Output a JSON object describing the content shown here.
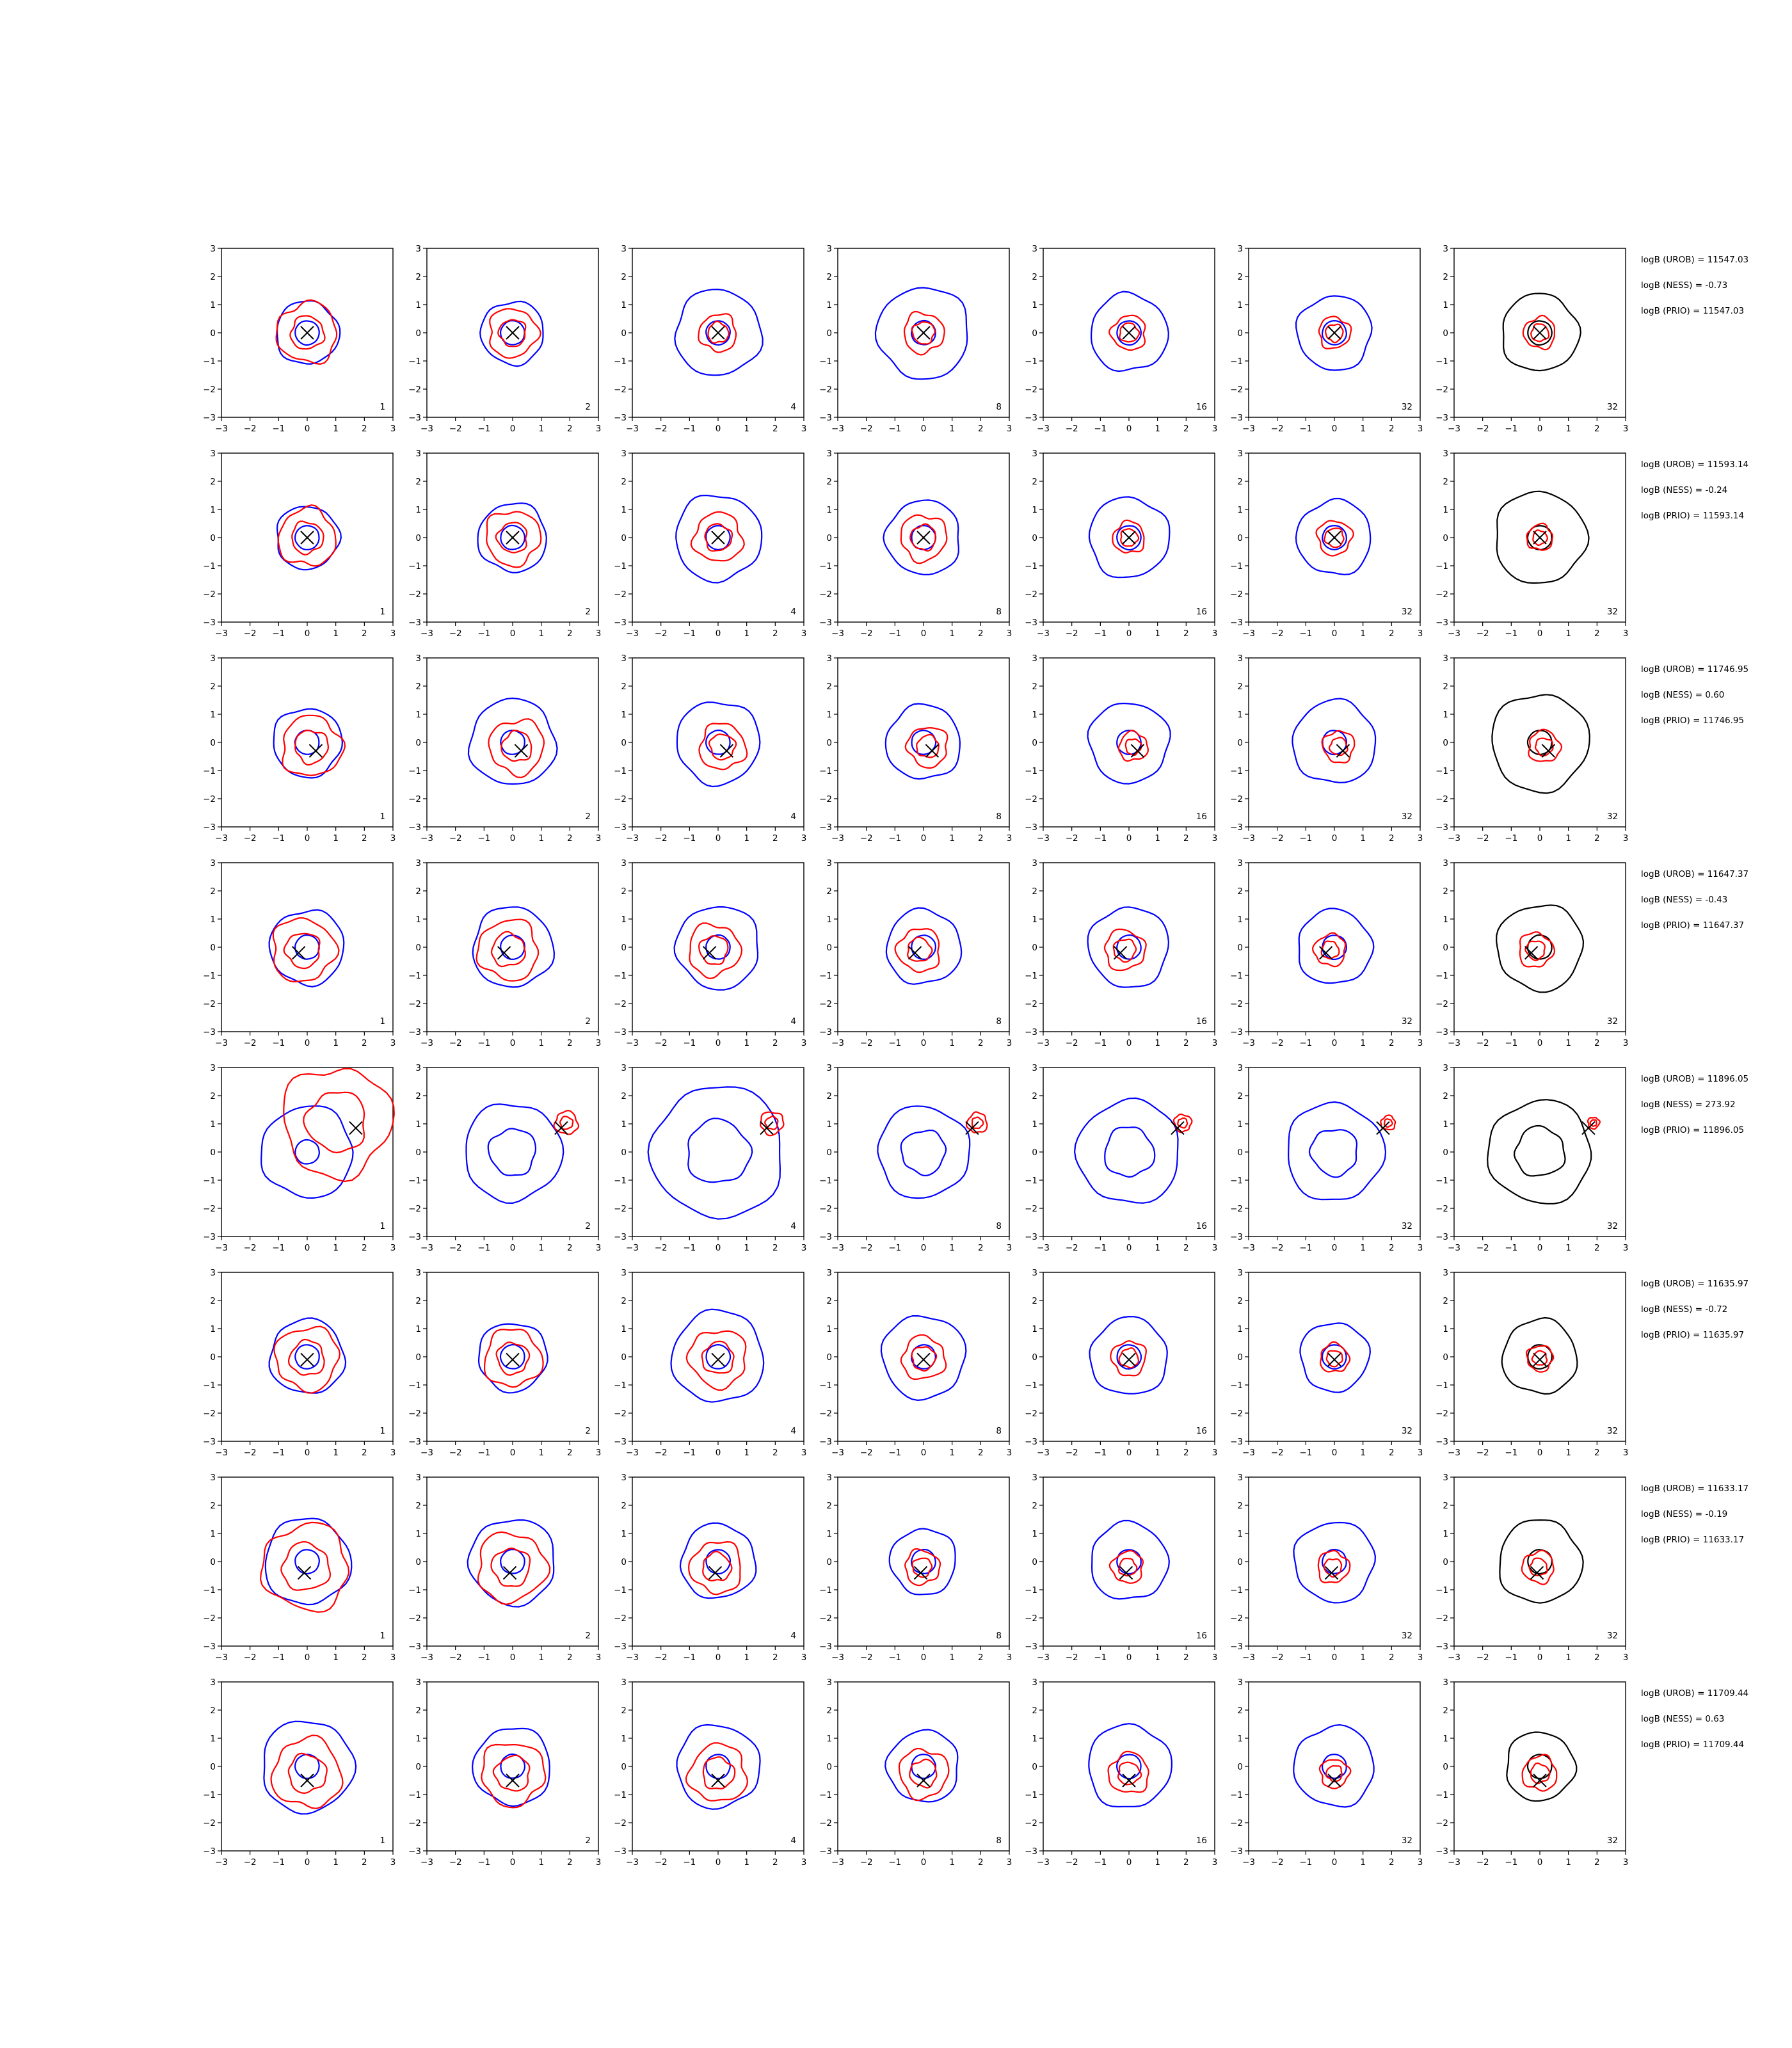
{
  "chart_data": {
    "type": "contour-grid",
    "title": "",
    "xlabel": "",
    "ylabel": "",
    "xlim": [
      -3,
      3
    ],
    "ylim": [
      -3,
      3
    ],
    "ticks": [
      "−3",
      "−2",
      "−1",
      "0",
      "1",
      "2",
      "3"
    ],
    "tick_values": [
      -3,
      -2,
      -1,
      0,
      1,
      2,
      3
    ],
    "grid": false,
    "colors": {
      "blue": "#0000ff",
      "red": "#ff0000",
      "black": "#000000"
    },
    "columns": [
      "1",
      "2",
      "4",
      "8",
      "16",
      "32",
      "32"
    ],
    "last_column_contour": "black",
    "rows": [
      {
        "marker": [
          0.0,
          0.0
        ],
        "blue": [
          1.1,
          1.1,
          1.5,
          1.6,
          1.35,
          1.3,
          1.35
        ],
        "red": [
          1.05,
          0.85,
          0.65,
          0.7,
          0.6,
          0.55,
          0.55
        ],
        "annotations": [
          "logB (UROB) = 11547.03",
          "logB (NESS) = -0.73",
          "logB (PRIO) = 11547.03"
        ]
      },
      {
        "marker": [
          0.0,
          0.0
        ],
        "blue": [
          1.1,
          1.2,
          1.5,
          1.3,
          1.4,
          1.3,
          1.6
        ],
        "red": [
          1.0,
          0.95,
          0.85,
          0.8,
          0.55,
          0.6,
          0.45
        ],
        "annotations": [
          "logB (UROB) = 11593.14",
          "logB (NESS) = -0.24",
          "logB (PRIO) = 11593.14"
        ]
      },
      {
        "marker": [
          0.3,
          -0.3
        ],
        "blue": [
          1.2,
          1.5,
          1.45,
          1.3,
          1.4,
          1.45,
          1.7
        ],
        "red": [
          1.05,
          0.95,
          0.8,
          0.7,
          0.5,
          0.55,
          0.55
        ],
        "annotations": [
          "logB (UROB) = 11746.95",
          "logB (NESS) = 0.60",
          "logB (PRIO) = 11746.95"
        ]
      },
      {
        "marker": [
          -0.3,
          -0.2
        ],
        "blue": [
          1.3,
          1.4,
          1.45,
          1.3,
          1.4,
          1.3,
          1.5
        ],
        "red": [
          1.1,
          1.05,
          0.9,
          0.75,
          0.7,
          0.55,
          0.6
        ],
        "annotations": [
          "logB (UROB) = 11647.37",
          "logB (NESS) = -0.43",
          "logB (PRIO) = 11647.37"
        ]
      },
      {
        "marker": [
          1.7,
          0.85
        ],
        "blue": [
          1.6,
          1.7,
          2.3,
          1.6,
          1.8,
          1.7,
          1.8
        ],
        "red": [
          1.9,
          0.4,
          0.4,
          0.35,
          0.3,
          0.25,
          0.2
        ],
        "annotations": [
          "logB (UROB) = 11896.05",
          "logB (NESS) = 273.92",
          "logB (PRIO) = 11896.05"
        ]
      },
      {
        "marker": [
          0.0,
          -0.1
        ],
        "blue": [
          1.3,
          1.2,
          1.6,
          1.45,
          1.35,
          1.2,
          1.3
        ],
        "red": [
          1.1,
          1.0,
          1.0,
          0.75,
          0.6,
          0.5,
          0.45
        ],
        "annotations": [
          "logB (UROB) = 11635.97",
          "logB (NESS) = -0.72",
          "logB (PRIO) = 11635.97"
        ]
      },
      {
        "marker": [
          -0.1,
          -0.4
        ],
        "blue": [
          1.5,
          1.5,
          1.3,
          1.15,
          1.35,
          1.4,
          1.45
        ],
        "red": [
          1.5,
          1.2,
          0.9,
          0.6,
          0.55,
          0.55,
          0.55
        ],
        "annotations": [
          "logB (UROB) = 11633.17",
          "logB (NESS) = -0.19",
          "logB (PRIO) = 11633.17"
        ]
      },
      {
        "marker": [
          0.0,
          -0.5
        ],
        "blue": [
          1.6,
          1.35,
          1.45,
          1.25,
          1.45,
          1.4,
          1.2
        ],
        "red": [
          1.2,
          1.1,
          1.0,
          0.85,
          0.7,
          0.5,
          0.6
        ],
        "annotations": [
          "logB (UROB) = 11709.44",
          "logB (NESS) = 0.63",
          "logB (PRIO) = 11709.44"
        ]
      }
    ]
  }
}
